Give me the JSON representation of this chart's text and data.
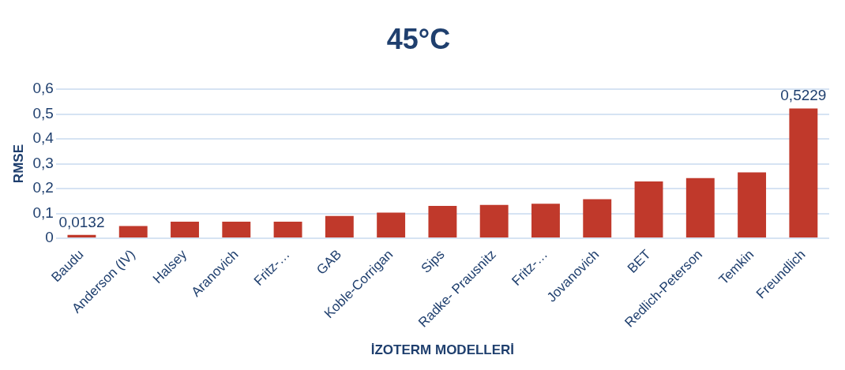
{
  "chart_data": {
    "type": "bar",
    "title": "45°C",
    "xlabel": "İZOTERM MODELLERİ",
    "ylabel": "RMSE",
    "categories": [
      "Baudu",
      "Anderson (IV)",
      "Halsey",
      "Aranovich",
      "Fritz-…",
      "GAB",
      "Koble-Corrigan",
      "Sips",
      "Radke- Prausnitz",
      "Fritz-…",
      "Jovanovich",
      "BET",
      "Redlich-Peterson",
      "Temkin",
      "Freundlich"
    ],
    "values": [
      0.0132,
      0.049,
      0.067,
      0.067,
      0.067,
      0.09,
      0.103,
      0.13,
      0.134,
      0.139,
      0.157,
      0.229,
      0.242,
      0.265,
      0.5229
    ],
    "value_labels": [
      "0,0132",
      null,
      null,
      null,
      null,
      null,
      null,
      null,
      null,
      null,
      null,
      null,
      null,
      null,
      "0,5229"
    ],
    "color": "#c0392b",
    "ylim": [
      0,
      0.6
    ],
    "yticks": [
      {
        "value": 0,
        "label": "0"
      },
      {
        "value": 0.1,
        "label": "0,1"
      },
      {
        "value": 0.2,
        "label": "0,2"
      },
      {
        "value": 0.3,
        "label": "0,3"
      },
      {
        "value": 0.4,
        "label": "0,4"
      },
      {
        "value": 0.5,
        "label": "0,5"
      },
      {
        "value": 0.6,
        "label": "0,6"
      }
    ],
    "grid": "y",
    "legend": false
  }
}
